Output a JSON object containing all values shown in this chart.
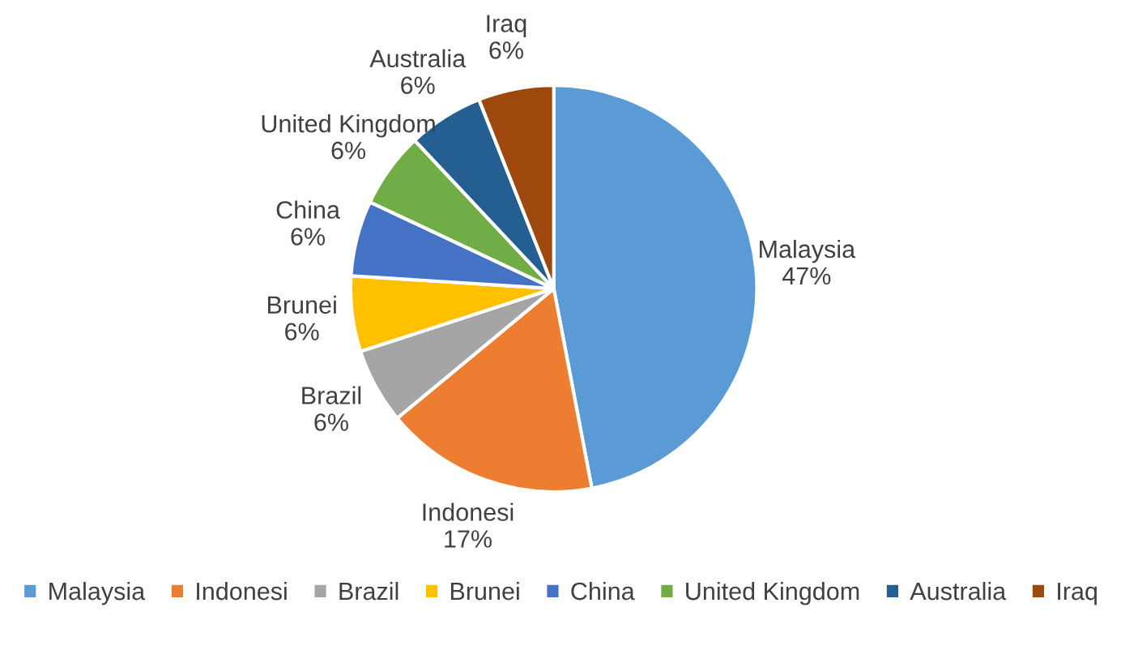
{
  "chart_data": {
    "type": "pie",
    "categories": [
      "Malaysia",
      "Indonesi",
      "Brazil",
      "Brunei",
      "China",
      "United Kingdom",
      "Australia",
      "Iraq"
    ],
    "values": [
      47,
      17,
      6,
      6,
      6,
      6,
      6,
      6
    ],
    "value_labels": [
      "47%",
      "17%",
      "6%",
      "6%",
      "6%",
      "6%",
      "6%",
      "6%"
    ],
    "colors": [
      "#5b9bd5",
      "#ed7d31",
      "#a5a5a5",
      "#ffc000",
      "#4472c4",
      "#70ad47",
      "#255e91",
      "#9e480e"
    ],
    "legend": "bottom"
  }
}
